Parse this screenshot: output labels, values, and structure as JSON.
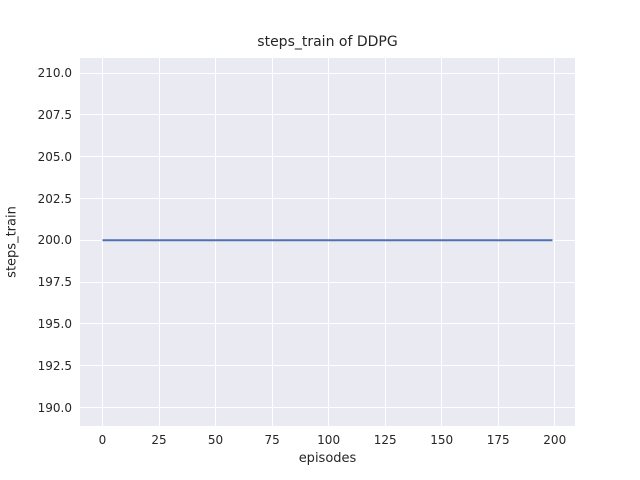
{
  "chart_data": {
    "type": "line",
    "title": "steps_train of DDPG",
    "xlabel": "episodes",
    "ylabel": "steps_train",
    "x_ticks": [
      0,
      25,
      50,
      75,
      100,
      125,
      150,
      175,
      200
    ],
    "x_tick_labels": [
      "0",
      "25",
      "50",
      "75",
      "100",
      "125",
      "150",
      "175",
      "200"
    ],
    "y_ticks": [
      190.0,
      192.5,
      195.0,
      197.5,
      200.0,
      202.5,
      205.0,
      207.5,
      210.0
    ],
    "y_tick_labels": [
      "190.0",
      "192.5",
      "195.0",
      "197.5",
      "200.0",
      "202.5",
      "205.0",
      "207.5",
      "210.0"
    ],
    "xlim": [
      -9.95,
      208.95
    ],
    "ylim": [
      188.9,
      210.9
    ],
    "grid": true,
    "legend": null,
    "series": [
      {
        "name": "steps_train",
        "color": "#4c72b0",
        "x": [
          0,
          199
        ],
        "y": [
          200,
          200
        ]
      }
    ],
    "colors": {
      "figure_background": "#ffffff",
      "plot_background": "#eaeaf2",
      "gridline": "#ffffff",
      "text": "#262626",
      "line": "#4c72b0"
    }
  }
}
